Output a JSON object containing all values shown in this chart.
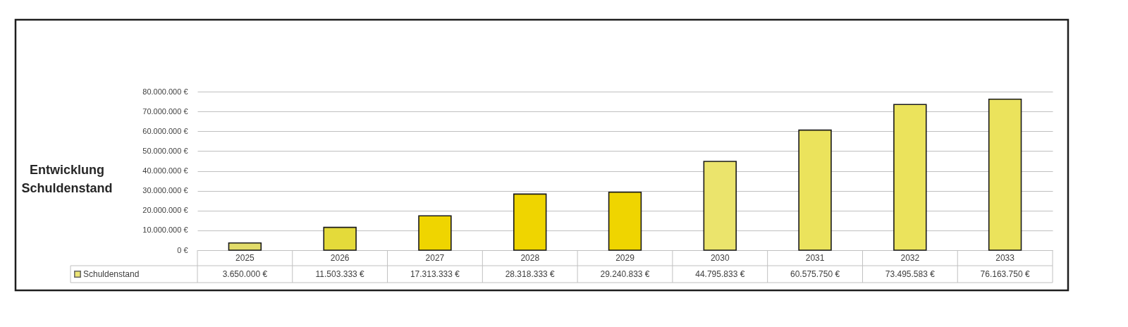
{
  "chart_data": {
    "type": "bar",
    "title": "Entwicklung Schuldenstand",
    "categories": [
      "2025",
      "2026",
      "2027",
      "2028",
      "2029",
      "2030",
      "2031",
      "2032",
      "2033"
    ],
    "series": [
      {
        "name": "Schuldenstand",
        "color": "#e4da3a",
        "values": [
          3650000,
          11503333,
          17313333,
          28318333,
          29240833,
          44795833,
          60575750,
          73495583,
          76163750
        ],
        "colors": [
          "#e2dc6a",
          "#e4da3a",
          "#efd500",
          "#efd500",
          "#efd500",
          "#ebe46c",
          "#ebe35c",
          "#ebe35c",
          "#ebe35c"
        ],
        "value_labels": [
          "3.650.000 €",
          "11.503.333 €",
          "17.313.333 €",
          "28.318.333 €",
          "29.240.833 €",
          "44.795.833 €",
          "60.575.750 €",
          "73.495.583 €",
          "76.163.750 €"
        ]
      }
    ],
    "ylim": [
      0,
      80000000
    ],
    "yticks": [
      {
        "value": 0,
        "label": "0 €"
      },
      {
        "value": 10000000,
        "label": "10.000.000 €"
      },
      {
        "value": 20000000,
        "label": "20.000.000 €"
      },
      {
        "value": 30000000,
        "label": "30.000.000 €"
      },
      {
        "value": 40000000,
        "label": "40.000.000 €"
      },
      {
        "value": 50000000,
        "label": "50.000.000 €"
      },
      {
        "value": 60000000,
        "label": "60.000.000 €"
      },
      {
        "value": 70000000,
        "label": "70.000.000 €"
      },
      {
        "value": 80000000,
        "label": "80.000.000 €"
      }
    ],
    "grid": "y",
    "legend": "bottom left"
  }
}
